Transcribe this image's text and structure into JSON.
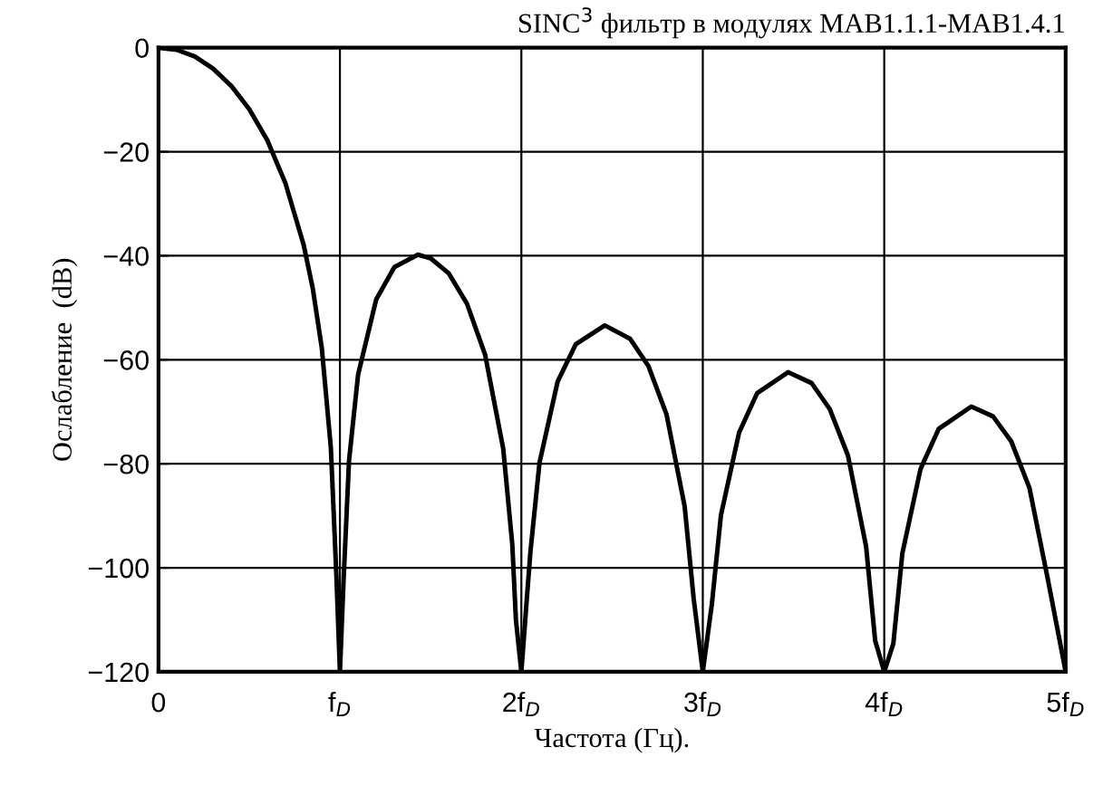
{
  "chart_data": {
    "type": "line",
    "title": "SINC$^{3}$ фильтр в модулях MAB1.1.1-MAB1.4.1",
    "xlabel": "Частота (Гц).",
    "ylabel": "Ослабление  (dB)",
    "xlim": [
      0,
      5
    ],
    "ylim": [
      -120,
      0
    ],
    "xticks": [
      0,
      {
        "value": 1,
        "label": "f$_{D}$"
      },
      {
        "value": 2,
        "label": "2f$_{D}$"
      },
      {
        "value": 3,
        "label": "3f$_{D}$"
      },
      {
        "value": 4,
        "label": "4f$_{D}$"
      },
      {
        "value": 5,
        "label": "5f$_{D}$"
      }
    ],
    "yticks": [
      0,
      -20,
      -40,
      -60,
      -80,
      -100,
      -120
    ],
    "grid": true,
    "legend": false,
    "marker": "none",
    "line_style": "solid",
    "series": [
      {
        "color": "#000000",
        "x": [
          0,
          0.1,
          0.2,
          0.3,
          0.4,
          0.5,
          0.6,
          0.7,
          0.8,
          0.85,
          0.9,
          0.95,
          0.98,
          1.0,
          1.02,
          1.05,
          1.1,
          1.2,
          1.3,
          1.43,
          1.5,
          1.6,
          1.7,
          1.8,
          1.9,
          1.95,
          1.97,
          2.0,
          2.03,
          2.05,
          2.1,
          2.2,
          2.3,
          2.46,
          2.6,
          2.7,
          2.8,
          2.9,
          2.95,
          3.0,
          3.05,
          3.1,
          3.2,
          3.3,
          3.47,
          3.6,
          3.7,
          3.8,
          3.9,
          3.95,
          4.0,
          4.05,
          4.1,
          4.2,
          4.3,
          4.48,
          4.6,
          4.7,
          4.8,
          4.9,
          5.0
        ],
        "values": [
          0,
          -0.4,
          -1.7,
          -4.0,
          -7.3,
          -11.8,
          -17.8,
          -26.1,
          -37.9,
          -46.2,
          -57.7,
          -76.9,
          -101,
          -120,
          -102.5,
          -79.5,
          -62.9,
          -48.4,
          -42.2,
          -39.8,
          -40.5,
          -43.4,
          -49.2,
          -59,
          -77.1,
          -95.5,
          -110,
          -120,
          -106,
          -96.9,
          -79.8,
          -64.2,
          -57,
          -53.4,
          -56,
          -61.2,
          -70.5,
          -88.2,
          -106,
          -120,
          -107,
          -89.9,
          -74,
          -66.4,
          -62.4,
          -64.5,
          -69.5,
          -78.4,
          -95.9,
          -114,
          -120,
          -114.6,
          -97.2,
          -81,
          -73.3,
          -69,
          -70.9,
          -75.7,
          -84.6,
          -101.9,
          -120
        ]
      }
    ]
  }
}
